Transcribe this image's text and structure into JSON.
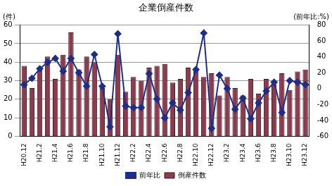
{
  "chart_data": {
    "type": "bar",
    "title": "企業倒産件数",
    "y_axis_label": "(件)",
    "y2_axis_label": "(前年比:%)",
    "categories": [
      "H20.12",
      null,
      "H21.2",
      null,
      "H21.4",
      null,
      "H21.6",
      null,
      "H21.8",
      null,
      "H21.10",
      null,
      "H21.12",
      null,
      "H22.2",
      null,
      "H22.4",
      null,
      "H22.6",
      null,
      "H22.8",
      null,
      "H22.10",
      null,
      "H22.12",
      null,
      "H23.2",
      null,
      "H23.4",
      null,
      "H23.6",
      null,
      "H23.8",
      null,
      "H23.10",
      null,
      "H23.12"
    ],
    "series": [
      {
        "name": "倒産件数",
        "type": "bar",
        "color": "#8c3a4e",
        "values": [
          38,
          26,
          37,
          43,
          31,
          44,
          56,
          36,
          43,
          40,
          26,
          20,
          44,
          24,
          32,
          30,
          37,
          38,
          39,
          29,
          31,
          37,
          36,
          32,
          34,
          22,
          32,
          26,
          22,
          31,
          23,
          31,
          28,
          34,
          25,
          35,
          36
        ]
      },
      {
        "name": "前年比",
        "type": "line",
        "color": "#1f2d8a",
        "marker": "diamond",
        "axis": "y2",
        "values": [
          5,
          13,
          25,
          33,
          38,
          22,
          38,
          20,
          3,
          43,
          3,
          -48,
          69,
          -22,
          -24,
          -24,
          19,
          -13,
          -37,
          -18,
          -27,
          -5,
          24,
          70,
          -50,
          17,
          0,
          -26,
          -12,
          -38,
          -18,
          -3,
          8,
          -30,
          10,
          8,
          5
        ]
      }
    ],
    "ylim": [
      0,
      60
    ],
    "yticks": [
      0,
      10,
      20,
      30,
      40,
      50,
      60
    ],
    "y2lim": [
      -60,
      80
    ],
    "y2ticks": [
      -60,
      -40,
      -20,
      0,
      20,
      40,
      60,
      80
    ],
    "grid": true,
    "legend": "bottom"
  }
}
